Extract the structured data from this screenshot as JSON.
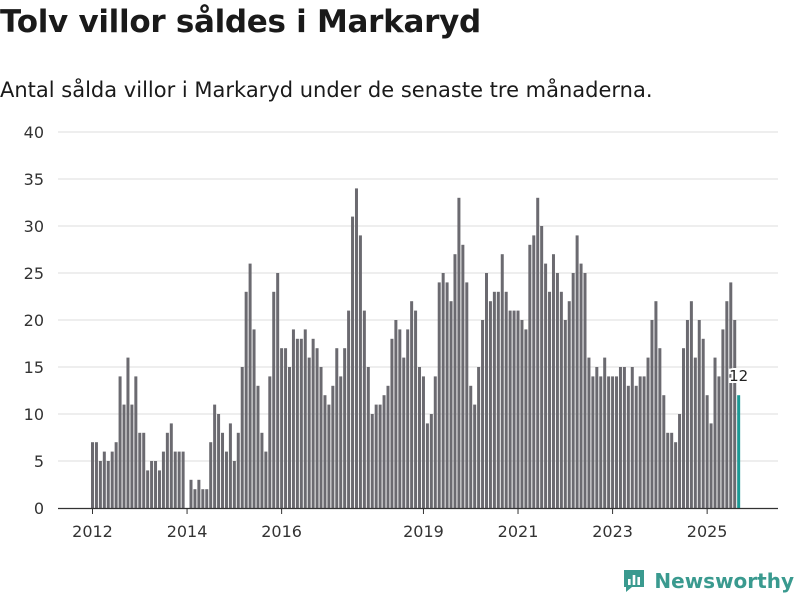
{
  "header": {
    "title": "Tolv villor såldes i Markaryd",
    "subtitle": "Antal sålda villor i Markaryd under de senaste tre månaderna."
  },
  "brand": {
    "name": "Newsworthy",
    "icon": "chart-logo-icon",
    "color": "#3a9a8f"
  },
  "chart_data": {
    "type": "bar",
    "title": "Tolv villor såldes i Markaryd",
    "subtitle": "Antal sålda villor i Markaryd under de senaste tre månaderna.",
    "xlabel": "",
    "ylabel": "",
    "ylim": [
      0,
      40
    ],
    "yticks": [
      0,
      5,
      10,
      15,
      20,
      25,
      30,
      35,
      40
    ],
    "grid": true,
    "bar_color": "#6b6a70",
    "highlight_color": "#1c9a96",
    "start": "2012-01",
    "xtick_labels": [
      {
        "label": "2012",
        "index": 0
      },
      {
        "label": "2014",
        "index": 24
      },
      {
        "label": "2016",
        "index": 48
      },
      {
        "label": "2019",
        "index": 84
      },
      {
        "label": "2021",
        "index": 108
      },
      {
        "label": "2023",
        "index": 132
      },
      {
        "label": "2025",
        "index": 156
      }
    ],
    "values": [
      7,
      7,
      5,
      6,
      5,
      6,
      7,
      14,
      11,
      16,
      11,
      14,
      8,
      8,
      4,
      5,
      5,
      4,
      6,
      8,
      9,
      6,
      6,
      6,
      null,
      3,
      2,
      3,
      2,
      2,
      7,
      11,
      10,
      8,
      6,
      9,
      5,
      8,
      15,
      23,
      26,
      19,
      13,
      8,
      6,
      14,
      23,
      25,
      17,
      17,
      15,
      19,
      18,
      18,
      19,
      16,
      18,
      17,
      15,
      12,
      11,
      13,
      17,
      14,
      17,
      21,
      31,
      34,
      29,
      21,
      15,
      10,
      11,
      11,
      12,
      13,
      18,
      20,
      19,
      16,
      19,
      22,
      21,
      15,
      14,
      9,
      10,
      14,
      24,
      25,
      24,
      22,
      27,
      33,
      28,
      24,
      13,
      11,
      15,
      20,
      25,
      22,
      23,
      23,
      27,
      23,
      21,
      21,
      21,
      20,
      19,
      28,
      29,
      33,
      30,
      26,
      23,
      27,
      25,
      23,
      20,
      22,
      25,
      29,
      26,
      25,
      16,
      14,
      15,
      14,
      16,
      14,
      14,
      14,
      15,
      15,
      13,
      15,
      13,
      14,
      14,
      16,
      20,
      22,
      17,
      12,
      8,
      8,
      7,
      10,
      17,
      20,
      22,
      16,
      20,
      18,
      12,
      9,
      16,
      14,
      19,
      22,
      24,
      20,
      12
    ],
    "highlight_index": 164,
    "highlight_label": "12"
  }
}
